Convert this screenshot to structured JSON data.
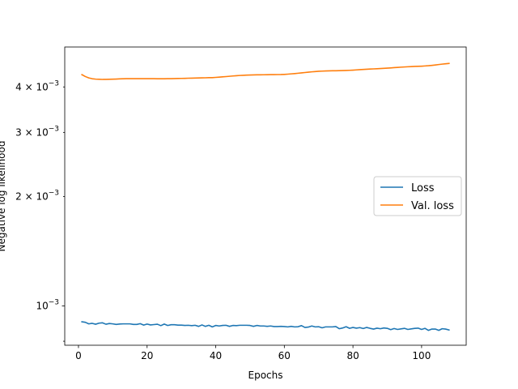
{
  "chart_data": {
    "type": "line",
    "title": "",
    "xlabel": "Epochs",
    "ylabel": "Negative log likelihood",
    "xlim": [
      -4,
      113
    ],
    "ylim": [
      0.00078,
      0.00515
    ],
    "yscale": "log",
    "x_ticks": [
      0,
      20,
      40,
      60,
      80,
      100
    ],
    "x_tick_labels": [
      "0",
      "20",
      "40",
      "60",
      "80",
      "100"
    ],
    "y_major_ticks": [
      0.001
    ],
    "y_major_tick_labels": [
      "10^{-3}"
    ],
    "y_minor_ticks": [
      0.0008,
      0.002,
      0.003,
      0.004
    ],
    "y_minor_tick_labels": [
      "",
      "2×10^{-3}",
      "3×10^{-3}",
      "4×10^{-3}"
    ],
    "tick_label_parts": {
      "10^{-3}": {
        "base": "10",
        "exp": "−3"
      },
      "2×10^{-3}": {
        "base": "2 × 10",
        "exp": "−3"
      },
      "3×10^{-3}": {
        "base": "3 × 10",
        "exp": "−3"
      },
      "4×10^{-3}": {
        "base": "4 × 10",
        "exp": "−3"
      }
    },
    "legend": {
      "position": "center-right",
      "entries": [
        "Loss",
        "Val. loss"
      ]
    },
    "grid": false,
    "series": [
      {
        "name": "Loss",
        "color": "#1f77b4",
        "x": [
          1,
          2,
          3,
          4,
          5,
          6,
          7,
          8,
          9,
          10,
          11,
          12,
          13,
          14,
          15,
          16,
          17,
          18,
          19,
          20,
          21,
          22,
          23,
          24,
          25,
          26,
          27,
          28,
          29,
          30,
          31,
          32,
          33,
          34,
          35,
          36,
          37,
          38,
          39,
          40,
          41,
          42,
          43,
          44,
          45,
          46,
          47,
          48,
          49,
          50,
          51,
          52,
          53,
          54,
          55,
          56,
          57,
          58,
          59,
          60,
          61,
          62,
          63,
          64,
          65,
          66,
          67,
          68,
          69,
          70,
          71,
          72,
          73,
          74,
          75,
          76,
          77,
          78,
          79,
          80,
          81,
          82,
          83,
          84,
          85,
          86,
          87,
          88,
          89,
          90,
          91,
          92,
          93,
          94,
          95,
          96,
          97,
          98,
          99,
          100,
          101,
          102,
          103,
          104,
          105,
          106,
          107,
          108
        ],
        "values": [
          0.000905,
          0.000902,
          0.000893,
          0.000896,
          0.000891,
          0.000897,
          0.000899,
          0.000891,
          0.000895,
          0.000893,
          0.00089,
          0.000892,
          0.000893,
          0.000893,
          0.000893,
          0.00089,
          0.00089,
          0.000894,
          0.000886,
          0.000892,
          0.000887,
          0.000889,
          0.000891,
          0.000883,
          0.000892,
          0.000884,
          0.000888,
          0.000888,
          0.000886,
          0.000886,
          0.000884,
          0.000885,
          0.000883,
          0.000885,
          0.000879,
          0.000887,
          0.000879,
          0.000885,
          0.000876,
          0.000884,
          0.000881,
          0.000884,
          0.000885,
          0.000879,
          0.000884,
          0.000883,
          0.000885,
          0.000885,
          0.000885,
          0.000884,
          0.000879,
          0.000884,
          0.000881,
          0.000881,
          0.000879,
          0.000881,
          0.000878,
          0.000878,
          0.000879,
          0.000878,
          0.000876,
          0.000879,
          0.000876,
          0.000877,
          0.000883,
          0.000873,
          0.000875,
          0.000881,
          0.000876,
          0.000877,
          0.000871,
          0.000876,
          0.000876,
          0.000876,
          0.000878,
          0.000866,
          0.00087,
          0.000877,
          0.000868,
          0.000873,
          0.000869,
          0.000872,
          0.000867,
          0.000873,
          0.000868,
          0.000864,
          0.000869,
          0.000866,
          0.00087,
          0.000868,
          0.000861,
          0.000867,
          0.000862,
          0.000865,
          0.000868,
          0.000862,
          0.000865,
          0.000868,
          0.000869,
          0.000862,
          0.000868,
          0.000857,
          0.000864,
          0.000864,
          0.000857,
          0.000866,
          0.000864,
          0.000859
        ]
      },
      {
        "name": "Val. loss",
        "color": "#ff7f0e",
        "x": [
          1,
          2,
          3,
          4,
          5,
          6,
          7,
          8,
          9,
          10,
          11,
          12,
          13,
          14,
          15,
          16,
          17,
          18,
          19,
          20,
          21,
          22,
          23,
          24,
          25,
          26,
          27,
          28,
          29,
          30,
          31,
          32,
          33,
          34,
          35,
          36,
          37,
          38,
          39,
          40,
          41,
          42,
          43,
          44,
          45,
          46,
          47,
          48,
          49,
          50,
          51,
          52,
          53,
          54,
          55,
          56,
          57,
          58,
          59,
          60,
          61,
          62,
          63,
          64,
          65,
          66,
          67,
          68,
          69,
          70,
          71,
          72,
          73,
          74,
          75,
          76,
          77,
          78,
          79,
          80,
          81,
          82,
          83,
          84,
          85,
          86,
          87,
          88,
          89,
          90,
          91,
          92,
          93,
          94,
          95,
          96,
          97,
          98,
          99,
          100,
          101,
          102,
          103,
          104,
          105,
          106,
          107,
          108
        ],
        "values": [
          0.004323,
          0.004272,
          0.004235,
          0.004213,
          0.004203,
          0.004198,
          0.004195,
          0.004196,
          0.004198,
          0.004201,
          0.004205,
          0.00421,
          0.004213,
          0.004215,
          0.004215,
          0.004215,
          0.004215,
          0.004214,
          0.004214,
          0.004214,
          0.004214,
          0.004214,
          0.004213,
          0.004213,
          0.004213,
          0.004215,
          0.004216,
          0.004218,
          0.00422,
          0.004222,
          0.004224,
          0.004227,
          0.004229,
          0.004231,
          0.004234,
          0.004236,
          0.004238,
          0.004241,
          0.004243,
          0.004249,
          0.004256,
          0.004264,
          0.004271,
          0.004279,
          0.004287,
          0.004294,
          0.004301,
          0.004306,
          0.004311,
          0.004314,
          0.004316,
          0.004318,
          0.004319,
          0.00432,
          0.004322,
          0.004324,
          0.004325,
          0.004326,
          0.004327,
          0.004331,
          0.004337,
          0.004345,
          0.004353,
          0.004362,
          0.004372,
          0.004382,
          0.004392,
          0.004401,
          0.004409,
          0.004416,
          0.004421,
          0.004425,
          0.004428,
          0.00443,
          0.004432,
          0.004434,
          0.004437,
          0.00444,
          0.004444,
          0.004449,
          0.004455,
          0.004462,
          0.004468,
          0.004474,
          0.004479,
          0.004484,
          0.004489,
          0.004494,
          0.004499,
          0.004505,
          0.004512,
          0.004519,
          0.004526,
          0.004533,
          0.004539,
          0.004545,
          0.00455,
          0.004554,
          0.004558,
          0.004562,
          0.004568,
          0.004575,
          0.004585,
          0.004597,
          0.004609,
          0.004621,
          0.004632,
          0.004642
        ]
      }
    ]
  }
}
